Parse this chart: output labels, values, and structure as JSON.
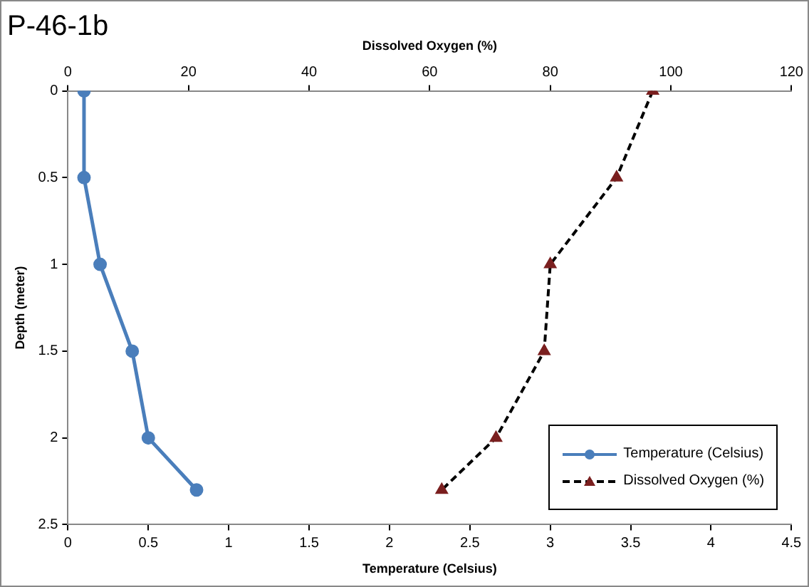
{
  "chart_data": {
    "type": "line",
    "title": "P-46-1b",
    "xlabel": "Temperature (Celsius)",
    "x2label": "Dissolved Oxygen (%)",
    "ylabel": "Depth (meter)",
    "xlim": [
      0,
      4.5
    ],
    "xticks": [
      0,
      0.5,
      1,
      1.5,
      2,
      2.5,
      3,
      3.5,
      4,
      4.5
    ],
    "x2lim": [
      0,
      120
    ],
    "x2ticks": [
      0,
      20,
      40,
      60,
      80,
      100,
      120
    ],
    "ylim": [
      2.5,
      0
    ],
    "yticks": [
      0,
      0.5,
      1,
      1.5,
      2,
      2.5
    ],
    "series": [
      {
        "name": "Temperature (Celsius)",
        "color": "#4a7ebb",
        "x": [
          0.1,
          0.1,
          0.2,
          0.4,
          0.5,
          0.8
        ],
        "values": [
          0,
          0.5,
          1,
          1.5,
          2,
          2.3
        ],
        "marker": "circle",
        "line_style": "solid"
      },
      {
        "name": "Dissolved Oxygen (%)",
        "color": "#000000",
        "axis": "x2",
        "x": [
          97,
          91,
          80,
          79,
          71,
          62
        ],
        "values": [
          0,
          0.5,
          1,
          1.5,
          2,
          2.3
        ],
        "marker": "triangle",
        "line_style": "dashed"
      }
    ],
    "grid": false,
    "legend": "bottom right"
  }
}
